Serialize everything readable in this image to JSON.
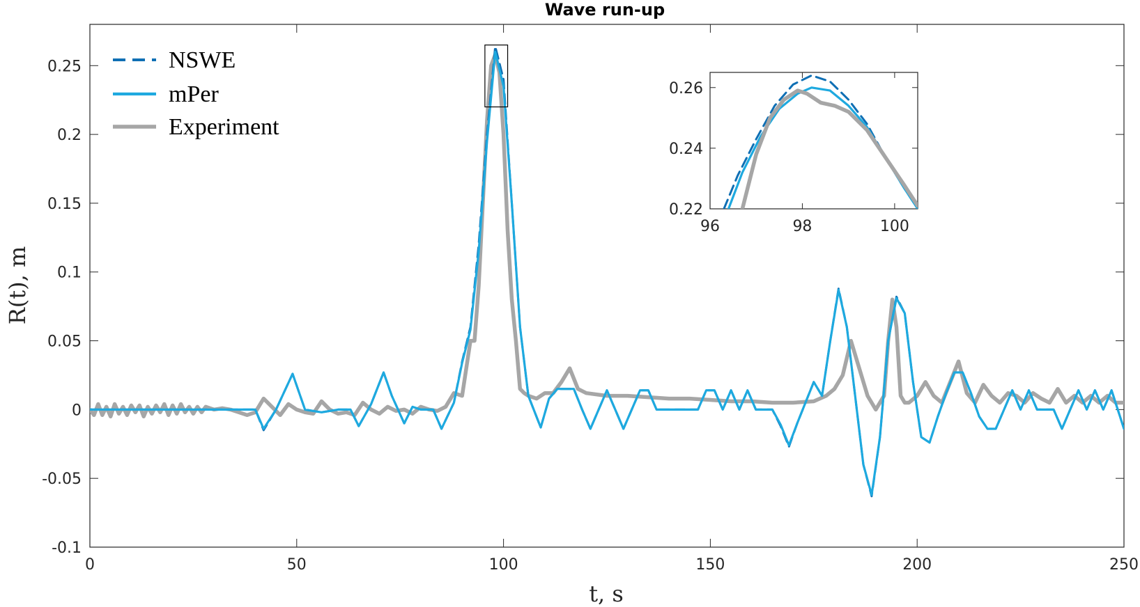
{
  "chart_data": {
    "type": "line",
    "title": "Wave run-up",
    "xlabel": "t, s",
    "ylabel": "R(t), m",
    "xlim": [
      0,
      250
    ],
    "ylim": [
      -0.1,
      0.28
    ],
    "xticks": [
      0,
      50,
      100,
      150,
      200,
      250
    ],
    "yticks": [
      -0.1,
      -0.05,
      0,
      0.05,
      0.1,
      0.15,
      0.2,
      0.25
    ],
    "xtick_labels": [
      "0",
      "50",
      "100",
      "150",
      "200",
      "250"
    ],
    "ytick_labels": [
      "-0.1",
      "-0.05",
      "0",
      "0.05",
      "0.1",
      "0.15",
      "0.2",
      "0.25"
    ],
    "grid": false,
    "legend_position": "top-left",
    "series": [
      {
        "name": "NSWE",
        "style": "dashed",
        "color": "#0f6fb4",
        "x": [
          0,
          40,
          42,
          45,
          49,
          52,
          56,
          60,
          63,
          65,
          68,
          71,
          73,
          76,
          78,
          80,
          83,
          85,
          88,
          90,
          92,
          94,
          96,
          98,
          100,
          102,
          104,
          106,
          109,
          111,
          113,
          115,
          117,
          119,
          121,
          123,
          125,
          127,
          129,
          131,
          133,
          135,
          137,
          139,
          141,
          143,
          145,
          147,
          149,
          151,
          153,
          155,
          157,
          159,
          161,
          163,
          165,
          167,
          169,
          171,
          173,
          175,
          177,
          179,
          181,
          183,
          185,
          187,
          189,
          191,
          193,
          195,
          197,
          199,
          201,
          203,
          205,
          207,
          209,
          211,
          213,
          215,
          217,
          219,
          221,
          223,
          225,
          227,
          229,
          231,
          233,
          235,
          237,
          239,
          241,
          243,
          245,
          247,
          250
        ],
        "y": [
          0,
          0,
          -0.015,
          0,
          0.026,
          0,
          -0.002,
          0,
          0,
          -0.012,
          0.004,
          0.027,
          0.01,
          -0.01,
          0.002,
          0,
          0,
          -0.014,
          0.005,
          0.035,
          0.06,
          0.12,
          0.2,
          0.264,
          0.24,
          0.15,
          0.06,
          0.01,
          -0.013,
          0.008,
          0.015,
          0.015,
          0.015,
          0,
          -0.014,
          0,
          0.014,
          0,
          -0.014,
          0,
          0.014,
          0.014,
          0,
          0,
          0,
          0,
          0,
          0,
          0.014,
          0.014,
          0,
          0.014,
          0,
          0.014,
          0,
          0,
          0,
          -0.012,
          -0.027,
          -0.01,
          0.005,
          0.02,
          0.01,
          0.05,
          0.088,
          0.06,
          0.01,
          -0.04,
          -0.063,
          -0.02,
          0.05,
          0.082,
          0.07,
          0.02,
          -0.02,
          -0.024,
          -0.005,
          0.012,
          0.027,
          0.027,
          0.012,
          -0.005,
          -0.014,
          -0.014,
          0,
          0.014,
          0,
          0.014,
          0,
          0,
          0,
          -0.014,
          0,
          0.014,
          0,
          0.014,
          0,
          0.014,
          -0.014
        ]
      },
      {
        "name": "mPer",
        "style": "solid",
        "color": "#1ea9df",
        "x": [
          0,
          40,
          42,
          45,
          49,
          52,
          56,
          60,
          63,
          65,
          68,
          71,
          73,
          76,
          78,
          80,
          83,
          85,
          88,
          90,
          92,
          94,
          96,
          98,
          100,
          102,
          104,
          106,
          109,
          111,
          113,
          115,
          117,
          119,
          121,
          123,
          125,
          127,
          129,
          131,
          133,
          135,
          137,
          139,
          141,
          143,
          145,
          147,
          149,
          151,
          153,
          155,
          157,
          159,
          161,
          163,
          165,
          167,
          169,
          171,
          173,
          175,
          177,
          179,
          181,
          183,
          185,
          187,
          189,
          191,
          193,
          195,
          197,
          199,
          201,
          203,
          205,
          207,
          209,
          211,
          213,
          215,
          217,
          219,
          221,
          223,
          225,
          227,
          229,
          231,
          233,
          235,
          237,
          239,
          241,
          243,
          245,
          247,
          250
        ],
        "y": [
          0,
          0,
          -0.014,
          0,
          0.026,
          0,
          -0.002,
          0,
          0,
          -0.012,
          0.004,
          0.027,
          0.01,
          -0.01,
          0.002,
          0,
          0,
          -0.014,
          0.005,
          0.034,
          0.058,
          0.115,
          0.195,
          0.26,
          0.235,
          0.15,
          0.06,
          0.01,
          -0.013,
          0.008,
          0.015,
          0.015,
          0.015,
          0,
          -0.014,
          0,
          0.014,
          0,
          -0.014,
          0,
          0.014,
          0.014,
          0,
          0,
          0,
          0,
          0,
          0,
          0.014,
          0.014,
          0,
          0.014,
          0,
          0.014,
          0,
          0,
          0,
          -0.011,
          -0.026,
          -0.01,
          0.005,
          0.02,
          0.01,
          0.05,
          0.087,
          0.06,
          0.01,
          -0.04,
          -0.062,
          -0.02,
          0.05,
          0.081,
          0.07,
          0.02,
          -0.02,
          -0.024,
          -0.005,
          0.012,
          0.027,
          0.027,
          0.012,
          -0.005,
          -0.014,
          -0.014,
          0,
          0.014,
          0,
          0.014,
          0,
          0,
          0,
          -0.014,
          0,
          0.014,
          0,
          0.014,
          0,
          0.014,
          -0.014
        ]
      },
      {
        "name": "Experiment",
        "style": "solid",
        "color": "#a6a6a6",
        "x": [
          0,
          1,
          2,
          3,
          4,
          5,
          6,
          7,
          8,
          9,
          10,
          11,
          12,
          13,
          14,
          15,
          16,
          17,
          18,
          19,
          20,
          21,
          22,
          23,
          24,
          25,
          26,
          27,
          28,
          29,
          30,
          32,
          34,
          36,
          38,
          40,
          42,
          44,
          46,
          48,
          50,
          52,
          54,
          56,
          58,
          60,
          62,
          64,
          66,
          68,
          70,
          72,
          74,
          76,
          78,
          80,
          82,
          84,
          86,
          88,
          90,
          92,
          93,
          94,
          95,
          96,
          97,
          98,
          99,
          100,
          101,
          102,
          103,
          104,
          105,
          106,
          108,
          110,
          112,
          114,
          116,
          118,
          120,
          125,
          130,
          135,
          140,
          145,
          150,
          155,
          160,
          165,
          170,
          175,
          178,
          180,
          182,
          184,
          186,
          188,
          190,
          192,
          193,
          194,
          195,
          196,
          197,
          198,
          200,
          202,
          204,
          206,
          208,
          210,
          212,
          214,
          216,
          218,
          220,
          222,
          224,
          226,
          228,
          230,
          232,
          234,
          236,
          238,
          240,
          242,
          244,
          246,
          248,
          250
        ],
        "y": [
          0,
          -0.004,
          0.004,
          -0.004,
          0.002,
          -0.005,
          0.004,
          -0.003,
          0.002,
          -0.004,
          0.003,
          -0.002,
          0.003,
          -0.005,
          0.002,
          -0.003,
          0.003,
          -0.002,
          0.004,
          -0.004,
          0.003,
          -0.003,
          0.004,
          -0.002,
          0.002,
          -0.003,
          0.002,
          -0.002,
          0.002,
          0.001,
          0,
          0.001,
          0,
          -0.002,
          -0.004,
          -0.002,
          0.008,
          0.002,
          -0.004,
          0.004,
          0,
          -0.002,
          -0.003,
          0.006,
          0,
          -0.003,
          -0.002,
          -0.004,
          0.005,
          0,
          -0.003,
          0.002,
          -0.001,
          0,
          -0.003,
          0.002,
          0,
          -0.001,
          0.002,
          0.012,
          0.01,
          0.05,
          0.05,
          0.09,
          0.15,
          0.21,
          0.25,
          0.258,
          0.245,
          0.2,
          0.13,
          0.08,
          0.05,
          0.015,
          0.012,
          0.01,
          0.008,
          0.012,
          0.012,
          0.02,
          0.03,
          0.015,
          0.012,
          0.01,
          0.01,
          0.009,
          0.008,
          0.008,
          0.007,
          0.006,
          0.006,
          0.005,
          0.005,
          0.006,
          0.01,
          0.015,
          0.025,
          0.05,
          0.03,
          0.01,
          0.0,
          0.01,
          0.05,
          0.08,
          0.06,
          0.01,
          0.005,
          0.005,
          0.01,
          0.02,
          0.01,
          0.005,
          0.02,
          0.035,
          0.012,
          0.005,
          0.018,
          0.01,
          0.005,
          0.012,
          0.01,
          0.005,
          0.012,
          0.008,
          0.005,
          0.015,
          0.005,
          0.01,
          0.005,
          0.01,
          0.005,
          0.01,
          0.005,
          0.005
        ]
      }
    ],
    "inset": {
      "xlim": [
        96,
        100.5
      ],
      "ylim": [
        0.22,
        0.265
      ],
      "xticks": [
        96,
        98,
        100
      ],
      "yticks": [
        0.22,
        0.24,
        0.26
      ],
      "xtick_labels": [
        "96",
        "98",
        "100"
      ],
      "ytick_labels": [
        "0.22",
        "0.24",
        "0.26"
      ],
      "series": [
        {
          "name": "NSWE",
          "x": [
            96.3,
            96.6,
            97.0,
            97.4,
            97.8,
            98.2,
            98.6,
            99.0,
            99.4,
            99.8,
            100.2,
            100.5
          ],
          "y": [
            0.22,
            0.231,
            0.243,
            0.254,
            0.261,
            0.264,
            0.262,
            0.256,
            0.248,
            0.237,
            0.227,
            0.22
          ]
        },
        {
          "name": "mPer",
          "x": [
            96.4,
            96.7,
            97.1,
            97.5,
            97.9,
            98.2,
            98.6,
            99.0,
            99.4,
            99.8,
            100.2,
            100.5
          ],
          "y": [
            0.22,
            0.232,
            0.244,
            0.253,
            0.258,
            0.26,
            0.259,
            0.254,
            0.247,
            0.237,
            0.227,
            0.22
          ]
        },
        {
          "name": "Experiment",
          "x": [
            96.7,
            97.0,
            97.3,
            97.6,
            97.9,
            98.1,
            98.4,
            98.7,
            99.0,
            99.4,
            99.8,
            100.2,
            100.5
          ],
          "y": [
            0.22,
            0.238,
            0.25,
            0.256,
            0.259,
            0.258,
            0.255,
            0.254,
            0.252,
            0.246,
            0.237,
            0.228,
            0.221
          ]
        }
      ]
    }
  }
}
